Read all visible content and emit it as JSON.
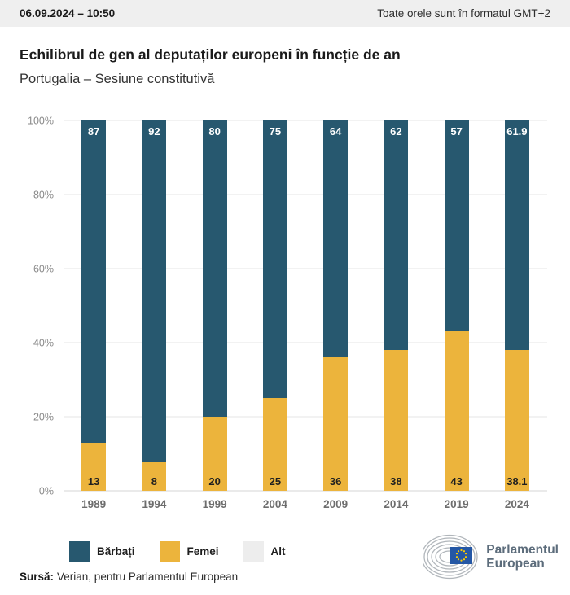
{
  "header": {
    "datetime": "06.09.2024 – 10:50",
    "timezone_note": "Toate orele sunt în formatul GMT+2"
  },
  "title": "Echilibrul de gen al deputaților europeni în funcție de an",
  "subtitle": "Portugalia – Sesiune constitutivă",
  "chart_data": {
    "type": "bar",
    "stacked": true,
    "categories": [
      "1989",
      "1994",
      "1999",
      "2004",
      "2009",
      "2014",
      "2019",
      "2024"
    ],
    "series": [
      {
        "name": "Bărbați",
        "color": "#27586F",
        "values": [
          87,
          92,
          80,
          75,
          64,
          62,
          57,
          61.9
        ]
      },
      {
        "name": "Femei",
        "color": "#ECB43C",
        "values": [
          13,
          8,
          20,
          25,
          36,
          38,
          43,
          38.1
        ]
      }
    ],
    "title": "Echilibrul de gen al deputaților europeni în funcție de an",
    "xlabel": "",
    "ylabel": "",
    "ylim": [
      0,
      100
    ],
    "yticks": [
      0,
      20,
      40,
      60,
      80,
      100
    ],
    "ytick_suffix": "%",
    "grid": true,
    "legend_position": "bottom",
    "value_labels": {
      "men_color": "#ffffff",
      "women_color": "#1f1f1f"
    }
  },
  "legend": {
    "items": [
      {
        "label": "Bărbați",
        "color": "#27586F"
      },
      {
        "label": "Femei",
        "color": "#ECB43C"
      },
      {
        "label": "Alt",
        "color": "#EDEDED"
      }
    ]
  },
  "source": {
    "prefix": "Sursă:",
    "text": "Verian, pentru Parlamentul European"
  },
  "logo": {
    "line1": "Parlamentul",
    "line2": "European",
    "flag_color": "#2457A5",
    "star_color": "#FFCC00"
  }
}
